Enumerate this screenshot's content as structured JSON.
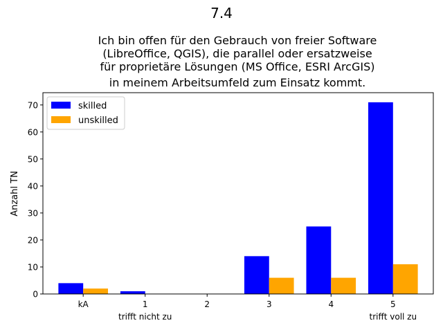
{
  "chart_data": {
    "type": "bar",
    "suptitle": "7.4",
    "title_lines": [
      "Ich bin offen für den Gebrauch von freier Software",
      "(LibreOffice, QGIS), die parallel oder ersatzweise",
      "für proprietäre Lösungen (MS Office, ESRI ArcGIS)",
      "in meinem Arbeitsumfeld zum Einsatz kommt."
    ],
    "xlabel": "",
    "ylabel": "Anzahl TN",
    "categories": [
      "kA",
      "1",
      "2",
      "3",
      "4",
      "5"
    ],
    "category_sublabels": {
      "1": "trifft nicht zu",
      "5": "trifft voll zu"
    },
    "series": [
      {
        "name": "skilled",
        "color": "#0000ff",
        "values": [
          4,
          1,
          0,
          14,
          25,
          71
        ]
      },
      {
        "name": "unskilled",
        "color": "#ffa500",
        "values": [
          2,
          0,
          0,
          6,
          6,
          11
        ]
      }
    ],
    "ylim": [
      0,
      74.55
    ],
    "yticks": [
      0,
      10,
      20,
      30,
      40,
      50,
      60,
      70
    ],
    "grid": false,
    "legend_position": "top-left"
  }
}
